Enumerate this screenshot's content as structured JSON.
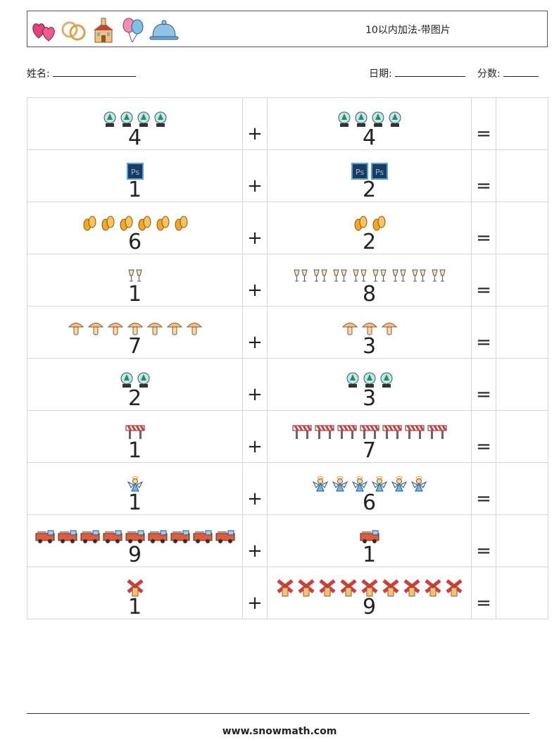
{
  "header": {
    "title": "10以内加法-带图片",
    "icons": [
      "hearts-icon",
      "rings-icon",
      "church-icon",
      "balloons-icon",
      "cloche-icon"
    ]
  },
  "info": {
    "name_label": "姓名:",
    "date_label": "日期:",
    "score_label": "分数:"
  },
  "symbols": {
    "plus": "+",
    "equals": "="
  },
  "rows": [
    {
      "a": "4",
      "a_icon": "snow-globe-icon",
      "b": "4",
      "b_icon": "snow-globe-icon"
    },
    {
      "a": "1",
      "a_icon": "ps-icon",
      "b": "2",
      "b_icon": "ps-icon"
    },
    {
      "a": "6",
      "a_icon": "flip-flops-icon",
      "b": "2",
      "b_icon": "flip-flops-icon"
    },
    {
      "a": "1",
      "a_icon": "toast-glasses-icon",
      "b": "8",
      "b_icon": "toast-glasses-icon"
    },
    {
      "a": "7",
      "a_icon": "mushroom-icon",
      "b": "3",
      "b_icon": "mushroom-icon"
    },
    {
      "a": "2",
      "a_icon": "snow-globe-icon",
      "b": "3",
      "b_icon": "snow-globe-icon"
    },
    {
      "a": "1",
      "a_icon": "road-barrier-icon",
      "b": "7",
      "b_icon": "road-barrier-icon"
    },
    {
      "a": "1",
      "a_icon": "angel-icon",
      "b": "6",
      "b_icon": "angel-icon"
    },
    {
      "a": "9",
      "a_icon": "fire-truck-icon",
      "b": "1",
      "b_icon": "fire-truck-icon"
    },
    {
      "a": "1",
      "a_icon": "windmill-icon",
      "b": "9",
      "b_icon": "windmill-icon"
    }
  ],
  "footer": {
    "url": "www.snowmath.com"
  }
}
